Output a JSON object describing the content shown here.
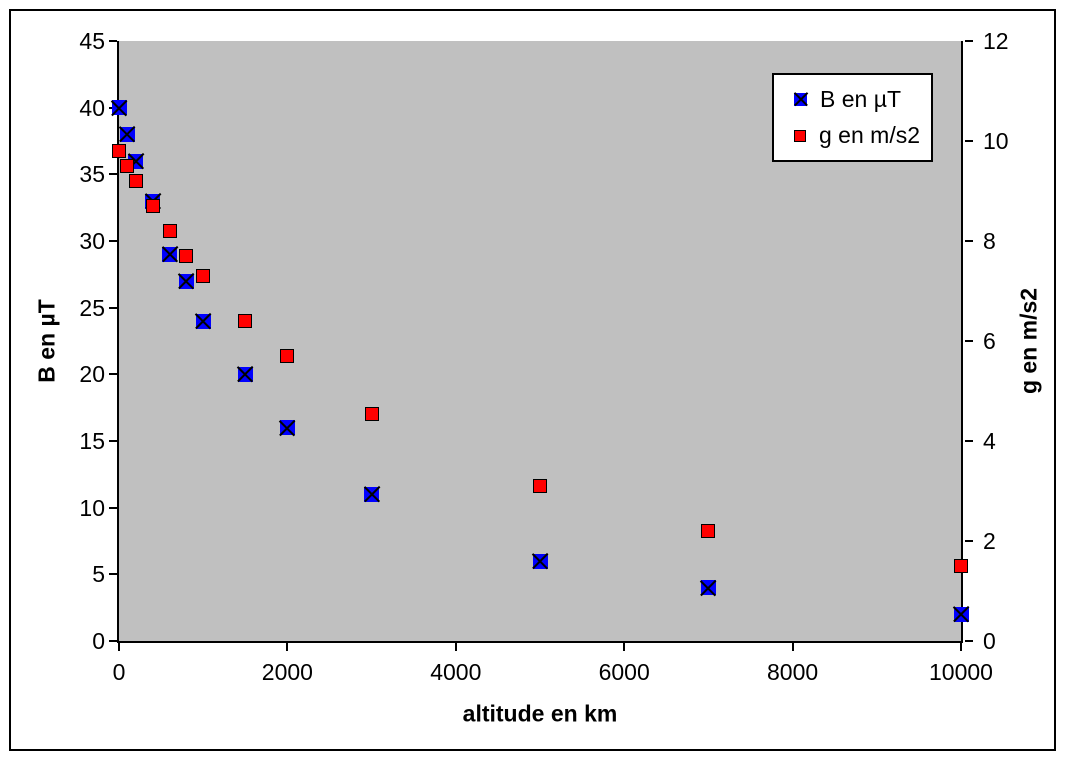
{
  "chart_data": {
    "type": "scatter",
    "title": "",
    "xlabel": "altitude en km",
    "ylabel_left": "B en µT",
    "ylabel_right": "g en m/s2",
    "xlim": [
      0,
      10000
    ],
    "ylim_left": [
      0,
      45
    ],
    "ylim_right": [
      0,
      12
    ],
    "x_ticks": [
      0,
      2000,
      4000,
      6000,
      8000,
      10000
    ],
    "y_ticks_left": [
      0,
      5,
      10,
      15,
      20,
      25,
      30,
      35,
      40,
      45
    ],
    "y_ticks_right": [
      0,
      2,
      4,
      6,
      8,
      10,
      12
    ],
    "grid": false,
    "plot_background": "#c0c0c0",
    "legend_position": "top-right",
    "x": [
      0,
      100,
      200,
      400,
      600,
      800,
      1000,
      1500,
      2000,
      3000,
      5000,
      7000,
      10000
    ],
    "series": [
      {
        "name": "B en µT",
        "axis": "left",
        "color": "#0000ff",
        "marker": "square-x",
        "values": [
          40,
          38,
          36,
          33,
          29,
          27,
          24,
          20,
          16,
          11,
          6,
          4,
          2
        ]
      },
      {
        "name": "g en m/s2",
        "axis": "right",
        "color": "#ff0000",
        "marker": "square",
        "values": [
          9.8,
          9.5,
          9.2,
          8.7,
          8.2,
          7.7,
          7.3,
          6.4,
          5.7,
          4.55,
          3.1,
          2.2,
          1.5
        ]
      }
    ]
  }
}
